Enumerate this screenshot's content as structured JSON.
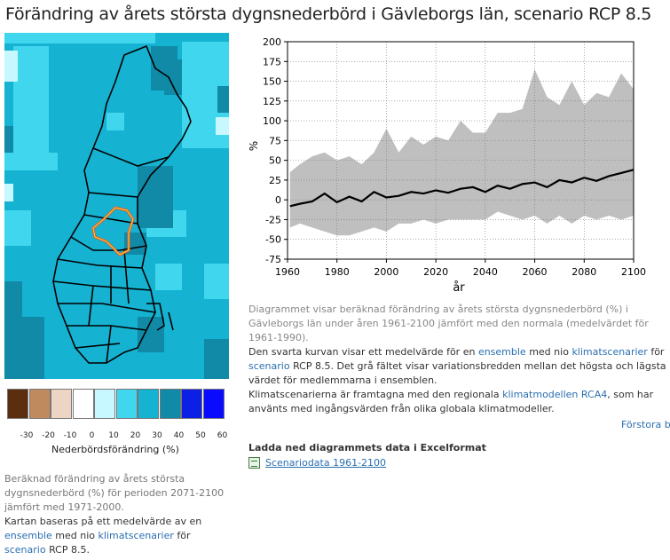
{
  "page": {
    "title": "Förändring av årets största dygnsnederbörd i Gävleborgs län, scenario RCP 8.5"
  },
  "legend": {
    "colors": [
      "#5a2e0e",
      "#c08a5f",
      "#edd5c6",
      "#ffffff",
      "#c7f7ff",
      "#40d6ee",
      "#16b2d2",
      "#108aa6",
      "#0c1fe4",
      "#0a0aff"
    ],
    "ticks": [
      "-30",
      "-20",
      "-10",
      "0",
      "10",
      "20",
      "30",
      "40",
      "50",
      "60"
    ],
    "title": "Nederbördsförändring (%)"
  },
  "map_text": {
    "line1": "Beräknad förändring av årets största dygnsnederbörd (%) för perioden 2071-2100 jämfört med 1971-2000.",
    "line2_pre": "Kartan baseras på ett medelvärde av en",
    "link_ensemble": "ensemble",
    "mid": "med nio",
    "link_klimatscenarier": "klimatscenarier",
    "for": "för",
    "link_scenario": "scenario",
    "rcp": "RCP 8.5."
  },
  "chart_data": {
    "type": "line",
    "ylabel": "%",
    "xlabel": "år",
    "xlim": [
      1960,
      2100
    ],
    "ylim": [
      -75,
      200
    ],
    "xticks": [
      1960,
      1980,
      2000,
      2020,
      2040,
      2060,
      2080,
      2100
    ],
    "yticks": [
      -75,
      -50,
      -25,
      0,
      25,
      50,
      75,
      100,
      125,
      150,
      175,
      200
    ],
    "grid": true,
    "x": [
      1961,
      1965,
      1970,
      1975,
      1980,
      1985,
      1990,
      1995,
      2000,
      2005,
      2010,
      2015,
      2020,
      2025,
      2030,
      2035,
      2040,
      2045,
      2050,
      2055,
      2060,
      2065,
      2070,
      2075,
      2080,
      2085,
      2090,
      2095,
      2100
    ],
    "mean": [
      -8,
      -5,
      -2,
      8,
      -3,
      4,
      -2,
      10,
      3,
      5,
      10,
      8,
      12,
      9,
      14,
      16,
      10,
      18,
      14,
      20,
      22,
      16,
      25,
      22,
      28,
      24,
      30,
      34,
      38
    ],
    "upper": [
      35,
      45,
      55,
      60,
      50,
      55,
      45,
      60,
      90,
      60,
      80,
      70,
      80,
      75,
      100,
      85,
      85,
      110,
      110,
      115,
      165,
      130,
      120,
      150,
      120,
      135,
      130,
      160,
      140
    ],
    "lower": [
      -35,
      -30,
      -35,
      -40,
      -45,
      -45,
      -40,
      -35,
      -40,
      -30,
      -30,
      -25,
      -30,
      -25,
      -25,
      -25,
      -25,
      -15,
      -20,
      -25,
      -20,
      -30,
      -20,
      -30,
      -20,
      -25,
      -20,
      -25,
      -20
    ],
    "band_color": "#bfbfbf",
    "line_color": "#000000"
  },
  "description": {
    "p1": "Diagrammet visar beräknad förändring av årets största dygnsnederbörd (%) i Gävleborgs län under åren 1961-2100 jämfört med den normala (medelvärdet för 1961-1990).",
    "p2_a": "Den svarta kurvan visar ett medelvärde för en",
    "p2_ensemble": "ensemble",
    "p2_b": "med nio",
    "p2_klimatscenarier": "klimatscenarier",
    "p2_c": "för",
    "p2_scenario": "scenario",
    "p2_d": "RCP 8.5. Det grå fältet visar variationsbredden mellan det högsta och lägsta värdet för medlemmarna i ensemblen.",
    "p3_a": "Klimatscenarierna är framtagna med den regionala",
    "p3_klimatmodellen": "klimatmodellen",
    "p3_rca4": "RCA4",
    "p3_b": ", som har använts med ingångsvärden från olika globala klimatmodeller.",
    "forstora": "Förstora b"
  },
  "download": {
    "title": "Ladda ned diagrammets data i Excelformat",
    "link": "Scenariodata 1961-2100"
  }
}
